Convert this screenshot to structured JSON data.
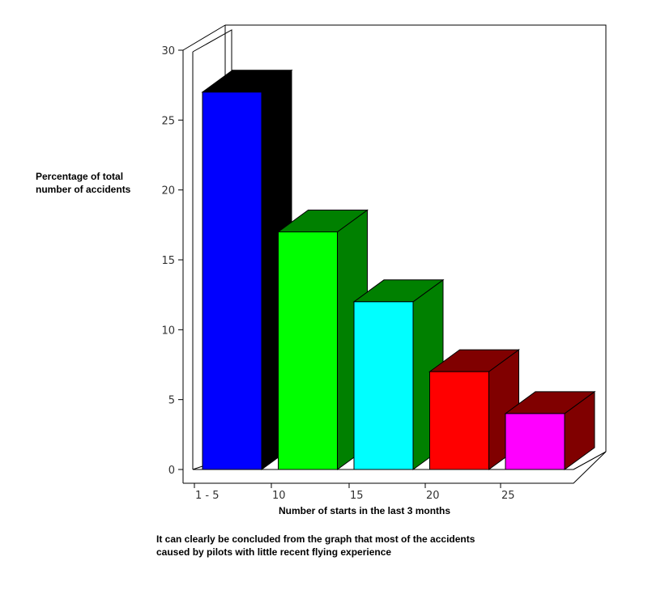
{
  "chart_data": {
    "type": "bar",
    "categories": [
      "1 - 5",
      "10",
      "15",
      "20",
      "25"
    ],
    "values": [
      27,
      17,
      12,
      7,
      4
    ],
    "ylabel": "Percentage of total\nnumber of accidents",
    "xlabel": "Number of starts in the last 3 months",
    "ylim": [
      0,
      30
    ],
    "yticks": [
      0,
      5,
      10,
      15,
      20,
      25,
      30
    ],
    "bar_colors": [
      {
        "front": "#0000ff",
        "side": "#000000",
        "top": "#000000"
      },
      {
        "front": "#00ff00",
        "side": "#008000",
        "top": "#008000"
      },
      {
        "front": "#00ffff",
        "side": "#008000",
        "top": "#008000"
      },
      {
        "front": "#ff0000",
        "side": "#800000",
        "top": "#800000"
      },
      {
        "front": "#ff00ff",
        "side": "#800000",
        "top": "#800000"
      }
    ],
    "grid": false,
    "style": "3d"
  },
  "caption": "It can clearly be concluded from the graph that most of the accidents\ncaused by pilots with little recent flying experience"
}
